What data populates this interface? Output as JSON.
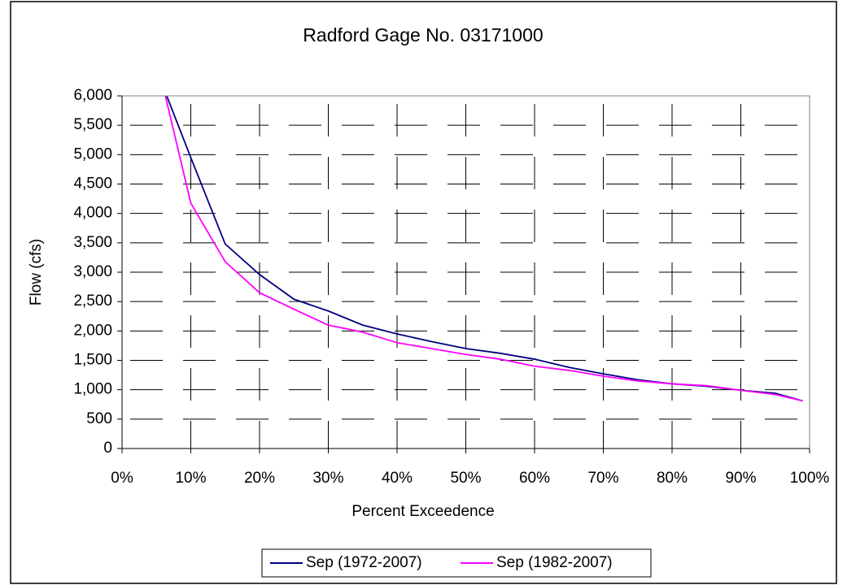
{
  "chart_data": {
    "type": "line",
    "title": "Radford Gage No. 03171000",
    "x_label": "Percent Exceedence",
    "y_label": "Flow (cfs)",
    "x": [
      5,
      10,
      15,
      20,
      25,
      30,
      35,
      40,
      45,
      50,
      55,
      60,
      65,
      70,
      75,
      80,
      85,
      90,
      95,
      99
    ],
    "series": [
      {
        "name": "Sep (1972-2007)",
        "color": "#000080",
        "values": [
          6450,
          4950,
          3480,
          2960,
          2540,
          2340,
          2100,
          1950,
          1820,
          1700,
          1620,
          1520,
          1380,
          1270,
          1170,
          1100,
          1060,
          990,
          940,
          810
        ]
      },
      {
        "name": "Sep (1982-2007)",
        "color": "#ff00ff",
        "values": [
          6640,
          4175,
          3180,
          2650,
          2370,
          2100,
          1980,
          1800,
          1700,
          1600,
          1520,
          1400,
          1330,
          1230,
          1150,
          1100,
          1070,
          990,
          920,
          810
        ]
      }
    ],
    "xlim": [
      0,
      100
    ],
    "xticks": [
      {
        "value": 0,
        "label": "0%"
      },
      {
        "value": 10,
        "label": "10%"
      },
      {
        "value": 20,
        "label": "20%"
      },
      {
        "value": 30,
        "label": "30%"
      },
      {
        "value": 40,
        "label": "40%"
      },
      {
        "value": 50,
        "label": "50%"
      },
      {
        "value": 60,
        "label": "60%"
      },
      {
        "value": 70,
        "label": "70%"
      },
      {
        "value": 80,
        "label": "80%"
      },
      {
        "value": 90,
        "label": "90%"
      },
      {
        "value": 100,
        "label": "100%"
      }
    ],
    "ylim": [
      0,
      6000
    ],
    "yticks": [
      0,
      500,
      {
        "value": 1000,
        "label": "1,000"
      },
      {
        "value": 1500,
        "label": "1,500"
      },
      {
        "value": 2000,
        "label": "2,000"
      },
      {
        "value": 2500,
        "label": "2,500"
      },
      {
        "value": 3000,
        "label": "3,000"
      },
      {
        "value": 3500,
        "label": "3,500"
      },
      {
        "value": 4000,
        "label": "4,000"
      },
      {
        "value": 4500,
        "label": "4,500"
      },
      {
        "value": 5000,
        "label": "5,000"
      },
      {
        "value": 5500,
        "label": "5,500"
      },
      {
        "value": 6000,
        "label": "6,000"
      }
    ],
    "grid": true,
    "legend": "bottom"
  }
}
